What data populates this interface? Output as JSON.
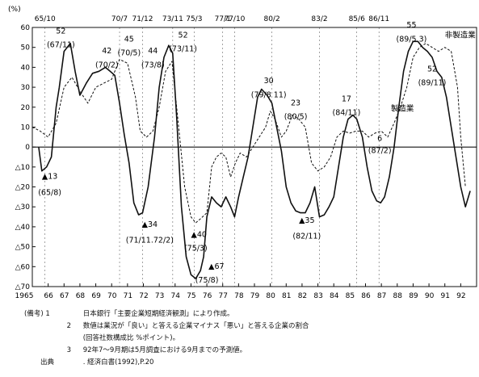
{
  "chart_data": {
    "type": "line",
    "ylabel": "(%)",
    "ylim": [
      -70,
      60
    ],
    "xlim": [
      1965,
      1993
    ],
    "y_ticks": [
      60,
      50,
      40,
      30,
      20,
      10,
      0,
      -10,
      -20,
      -30,
      -40,
      -50,
      -60,
      -70
    ],
    "y_tick_labels": [
      "60",
      "50",
      "40",
      "30",
      "20",
      "10",
      "0",
      "△10",
      "△20",
      "△30",
      "△40",
      "△50",
      "△60",
      "△70"
    ],
    "x_tick_labels": [
      "1965",
      "66",
      "67",
      "68",
      "69",
      "70",
      "71",
      "72",
      "73",
      "74",
      "75",
      "76",
      "77",
      "78",
      "79",
      "80",
      "81",
      "82",
      "83",
      "84",
      "85",
      "86",
      "87",
      "88",
      "89",
      "90",
      "91",
      "92"
    ],
    "top_date_labels": [
      {
        "label": "65/10",
        "x": 1965.8
      },
      {
        "label": "70/7",
        "x": 1970.5
      },
      {
        "label": "71/12",
        "x": 1971.95
      },
      {
        "label": "73/11",
        "x": 1973.85
      },
      {
        "label": "75/3",
        "x": 1975.2
      },
      {
        "label": "77/1",
        "x": 1977.0
      },
      {
        "label": "77/10",
        "x": 1977.75
      },
      {
        "label": "80/2",
        "x": 1980.1
      },
      {
        "label": "83/2",
        "x": 1983.1
      },
      {
        "label": "85/6",
        "x": 1985.45
      },
      {
        "label": "86/11",
        "x": 1986.85
      }
    ],
    "series": [
      {
        "name": "製造業",
        "style": "solid",
        "x": [
          1965.4,
          1965.6,
          1965.9,
          1966.2,
          1966.5,
          1966.7,
          1967.0,
          1967.4,
          1967.7,
          1968.0,
          1968.4,
          1968.8,
          1969.2,
          1969.6,
          1969.9,
          1970.2,
          1970.5,
          1970.8,
          1971.1,
          1971.4,
          1971.7,
          1971.95,
          1972.3,
          1972.7,
          1973.0,
          1973.3,
          1973.6,
          1973.85,
          1974.1,
          1974.4,
          1974.7,
          1975.0,
          1975.3,
          1975.6,
          1975.8,
          1976.0,
          1976.3,
          1976.6,
          1976.9,
          1977.2,
          1977.5,
          1977.75,
          1978.0,
          1978.3,
          1978.6,
          1978.9,
          1979.2,
          1979.45,
          1979.8,
          1980.1,
          1980.4,
          1980.7,
          1981.0,
          1981.3,
          1981.6,
          1981.9,
          1982.2,
          1982.5,
          1982.8,
          1983.1,
          1983.4,
          1983.7,
          1984.0,
          1984.3,
          1984.6,
          1984.9,
          1985.2,
          1985.45,
          1985.8,
          1986.1,
          1986.4,
          1986.7,
          1986.95,
          1987.2,
          1987.5,
          1987.8,
          1988.1,
          1988.4,
          1988.7,
          1989.0,
          1989.3,
          1989.6,
          1989.9,
          1990.2,
          1990.5,
          1990.8,
          1991.1,
          1991.4,
          1991.7,
          1992.0,
          1992.3,
          1992.6
        ],
        "y": [
          0,
          -12,
          -10,
          -5,
          20,
          30,
          48,
          52,
          38,
          26,
          32,
          37,
          38,
          40,
          38,
          36,
          22,
          6,
          -8,
          -28,
          -34,
          -33,
          -20,
          5,
          30,
          45,
          51,
          47,
          15,
          -30,
          -55,
          -64,
          -66,
          -62,
          -55,
          -35,
          -25,
          -28,
          -30,
          -25,
          -30,
          -35,
          -25,
          -15,
          -5,
          10,
          25,
          29,
          26,
          22,
          10,
          -2,
          -20,
          -28,
          -32,
          -33,
          -33,
          -28,
          -20,
          -35,
          -34,
          -30,
          -25,
          -10,
          5,
          14,
          16,
          14,
          5,
          -10,
          -22,
          -27,
          -28,
          -25,
          -15,
          0,
          20,
          38,
          48,
          53,
          53,
          50,
          48,
          45,
          38,
          35,
          25,
          10,
          -5,
          -20,
          -30,
          -22
        ]
      },
      {
        "name": "非製造業",
        "style": "dashed",
        "x": [
          1965.0,
          1965.5,
          1966.0,
          1966.5,
          1967.0,
          1967.5,
          1968.0,
          1968.5,
          1969.0,
          1969.5,
          1970.0,
          1970.5,
          1971.0,
          1971.5,
          1971.8,
          1972.2,
          1972.6,
          1973.0,
          1973.4,
          1973.8,
          1974.2,
          1974.6,
          1975.0,
          1975.3,
          1975.6,
          1976.0,
          1976.3,
          1976.6,
          1976.9,
          1977.2,
          1977.5,
          1977.8,
          1978.1,
          1978.5,
          1978.9,
          1979.3,
          1979.7,
          1980.0,
          1980.3,
          1980.7,
          1981.0,
          1981.4,
          1981.8,
          1982.2,
          1982.6,
          1983.0,
          1983.4,
          1983.8,
          1984.2,
          1984.6,
          1985.0,
          1985.4,
          1985.8,
          1986.2,
          1986.6,
          1987.0,
          1987.4,
          1987.8,
          1988.2,
          1988.6,
          1989.0,
          1989.4,
          1989.8,
          1990.2,
          1990.6,
          1991.0,
          1991.4,
          1991.8,
          1992.0,
          1992.3
        ],
        "y": [
          10,
          8,
          5,
          12,
          30,
          35,
          28,
          22,
          30,
          32,
          34,
          44,
          42,
          25,
          8,
          5,
          8,
          20,
          38,
          43,
          12,
          -20,
          -35,
          -38,
          -36,
          -33,
          -10,
          -5,
          -3,
          -5,
          -15,
          -8,
          -3,
          -5,
          0,
          5,
          10,
          18,
          14,
          5,
          8,
          16,
          14,
          10,
          -8,
          -12,
          -10,
          -5,
          5,
          8,
          7,
          8,
          8,
          5,
          7,
          8,
          5,
          12,
          20,
          30,
          45,
          50,
          52,
          50,
          48,
          50,
          48,
          30,
          5,
          -20
        ]
      }
    ],
    "annotations": [
      {
        "text": "52",
        "x": 1966.8,
        "y": 57,
        "marker": false
      },
      {
        "text": "(67/11)",
        "x": 1966.8,
        "y": 50,
        "marker": false
      },
      {
        "text": "42",
        "x": 1969.7,
        "y": 47,
        "marker": false
      },
      {
        "text": "(70/2)",
        "x": 1969.7,
        "y": 40,
        "marker": false
      },
      {
        "text": "45",
        "x": 1971.1,
        "y": 53,
        "marker": false
      },
      {
        "text": "(70/5)",
        "x": 1971.1,
        "y": 46,
        "marker": false
      },
      {
        "text": "44",
        "x": 1972.6,
        "y": 47,
        "marker": false
      },
      {
        "text": "(73/8)",
        "x": 1972.6,
        "y": 40,
        "marker": false
      },
      {
        "text": "52",
        "x": 1974.5,
        "y": 55,
        "marker": false
      },
      {
        "text": "(73/11)",
        "x": 1974.5,
        "y": 48,
        "marker": false
      },
      {
        "text": "30",
        "x": 1979.9,
        "y": 32,
        "marker": false
      },
      {
        "text": "(79/8 11)",
        "x": 1979.9,
        "y": 25,
        "marker": false
      },
      {
        "text": "23",
        "x": 1981.6,
        "y": 21,
        "marker": false
      },
      {
        "text": "(80/5)",
        "x": 1981.6,
        "y": 14,
        "marker": false
      },
      {
        "text": "17",
        "x": 1984.8,
        "y": 23,
        "marker": false
      },
      {
        "text": "(84/11)",
        "x": 1984.8,
        "y": 16,
        "marker": false
      },
      {
        "text": "6",
        "x": 1986.9,
        "y": 3,
        "marker": false
      },
      {
        "text": "(87/2)",
        "x": 1986.9,
        "y": -3,
        "marker": false
      },
      {
        "text": "55",
        "x": 1988.9,
        "y": 60,
        "marker": false
      },
      {
        "text": "(89/5 3)",
        "x": 1988.9,
        "y": 53,
        "marker": false
      },
      {
        "text": "52",
        "x": 1990.2,
        "y": 38,
        "marker": false
      },
      {
        "text": "(89/11)",
        "x": 1990.2,
        "y": 31,
        "marker": false
      },
      {
        "text": "▲13",
        "x": 1966.1,
        "y": -16,
        "marker": true
      },
      {
        "text": "(65/8)",
        "x": 1966.1,
        "y": -24,
        "marker": true
      },
      {
        "text": "▲34",
        "x": 1972.4,
        "y": -40,
        "marker": true
      },
      {
        "text": "(71/11.72/2)",
        "x": 1972.4,
        "y": -48,
        "marker": true
      },
      {
        "text": "▲40",
        "x": 1975.5,
        "y": -45,
        "marker": true
      },
      {
        "text": "(75/3)",
        "x": 1975.3,
        "y": -52,
        "marker": true
      },
      {
        "text": "▲67",
        "x": 1976.6,
        "y": -61,
        "marker": true
      },
      {
        "text": "(75/8)",
        "x": 1976.0,
        "y": -68,
        "marker": true
      },
      {
        "text": "▲35",
        "x": 1982.3,
        "y": -38,
        "marker": true
      },
      {
        "text": "(82/11)",
        "x": 1982.3,
        "y": -46,
        "marker": true
      }
    ],
    "legend_labels": [
      {
        "text": "非製造業",
        "x": 1991.0,
        "y": 55
      },
      {
        "text": "製造業",
        "x": 1987.6,
        "y": 18
      }
    ]
  },
  "notes": [
    {
      "label": "(備考) 1",
      "text": "日本銀行「主要企業短期経済観測」により作成。"
    },
    {
      "label": "2",
      "text": "数値は業況が「良い」と答える企業マイナス「悪い」と答える企業の割合"
    },
    {
      "label": "",
      "text": "(回答社数構成比 %ポイント)。"
    },
    {
      "label": "3",
      "text": "92年7～9月期は5月調査における9月までの予測値。"
    },
    {
      "label": "出典",
      "text": ". 経済白書(1992),P.20"
    }
  ]
}
